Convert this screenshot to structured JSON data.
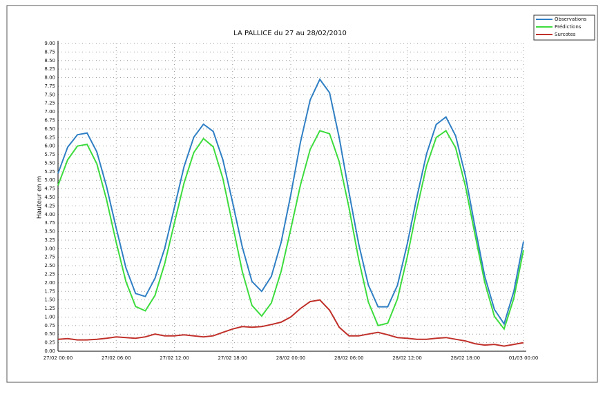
{
  "chart_data": {
    "type": "line",
    "title": "LA PALLICE du 27 au 28/02/2010",
    "y_label": "Hauteur en m",
    "x": [
      0,
      1,
      2,
      3,
      4,
      5,
      6,
      7,
      8,
      9,
      10,
      11,
      12,
      13,
      14,
      15,
      16,
      17,
      18,
      19,
      20,
      21,
      22,
      23,
      24,
      25,
      26,
      27,
      28,
      29,
      30,
      31,
      32,
      33,
      34,
      35,
      36,
      37,
      38,
      39,
      40,
      41,
      42,
      43,
      44,
      45,
      46,
      47,
      48
    ],
    "series": [
      {
        "name": "Observations",
        "color": "#2f7fc4",
        "values": [
          5.2,
          5.97,
          6.33,
          6.38,
          5.83,
          4.82,
          3.6,
          2.44,
          1.69,
          1.6,
          2.13,
          3.01,
          4.2,
          5.4,
          6.26,
          6.64,
          6.43,
          5.6,
          4.35,
          3.05,
          2.04,
          1.75,
          2.19,
          3.18,
          4.57,
          6.11,
          7.35,
          7.95,
          7.56,
          6.24,
          4.65,
          3.14,
          1.94,
          1.3,
          1.3,
          1.93,
          3.12,
          4.5,
          5.77,
          6.63,
          6.85,
          6.3,
          5.14,
          3.63,
          2.2,
          1.22,
          0.8,
          1.75,
          3.21
        ]
      },
      {
        "name": "Prédictions",
        "color": "#3ddc3d",
        "values": [
          4.85,
          5.6,
          6.0,
          6.05,
          5.48,
          4.44,
          3.18,
          2.04,
          1.31,
          1.18,
          1.63,
          2.56,
          3.75,
          4.92,
          5.81,
          6.22,
          5.98,
          5.05,
          3.7,
          2.33,
          1.34,
          1.03,
          1.41,
          2.33,
          3.57,
          4.86,
          5.9,
          6.45,
          6.36,
          5.54,
          4.2,
          2.69,
          1.44,
          0.75,
          0.82,
          1.53,
          2.74,
          4.15,
          5.42,
          6.25,
          6.45,
          5.95,
          4.84,
          3.41,
          2.02,
          1.02,
          0.65,
          1.55,
          2.96
        ]
      },
      {
        "name": "Surcotes",
        "color": "#c0302a",
        "values": [
          0.35,
          0.37,
          0.33,
          0.33,
          0.35,
          0.38,
          0.42,
          0.4,
          0.38,
          0.42,
          0.5,
          0.45,
          0.45,
          0.48,
          0.45,
          0.42,
          0.45,
          0.55,
          0.65,
          0.72,
          0.7,
          0.72,
          0.78,
          0.85,
          1.0,
          1.25,
          1.45,
          1.5,
          1.2,
          0.7,
          0.45,
          0.45,
          0.5,
          0.55,
          0.48,
          0.4,
          0.38,
          0.35,
          0.35,
          0.38,
          0.4,
          0.35,
          0.3,
          0.22,
          0.18,
          0.2,
          0.15,
          0.2,
          0.25
        ]
      }
    ],
    "xlim": [
      0,
      48
    ],
    "xticks": [
      {
        "value": 0,
        "label": "27/02 00:00"
      },
      {
        "value": 6,
        "label": "27/02 06:00"
      },
      {
        "value": 12,
        "label": "27/02 12:00"
      },
      {
        "value": 18,
        "label": "27/02 18:00"
      },
      {
        "value": 24,
        "label": "28/02 00:00"
      },
      {
        "value": 30,
        "label": "28/02 06:00"
      },
      {
        "value": 36,
        "label": "28/02 12:00"
      },
      {
        "value": 42,
        "label": "28/02 18:00"
      },
      {
        "value": 48,
        "label": "01/03 00:00"
      }
    ],
    "ylim": [
      0,
      9
    ],
    "yticks": [
      {
        "value": 0,
        "label": "0.00"
      },
      {
        "value": 0.25,
        "label": "0.25"
      },
      {
        "value": 0.5,
        "label": "0.50"
      },
      {
        "value": 0.75,
        "label": "0.75"
      },
      {
        "value": 1,
        "label": "1.00"
      },
      {
        "value": 1.25,
        "label": "1.25"
      },
      {
        "value": 1.5,
        "label": "1.50"
      },
      {
        "value": 1.75,
        "label": "1.75"
      },
      {
        "value": 2,
        "label": "2.00"
      },
      {
        "value": 2.25,
        "label": "2.25"
      },
      {
        "value": 2.5,
        "label": "2.50"
      },
      {
        "value": 2.75,
        "label": "2.75"
      },
      {
        "value": 3,
        "label": "3.00"
      },
      {
        "value": 3.25,
        "label": "3.25"
      },
      {
        "value": 3.5,
        "label": "3.50"
      },
      {
        "value": 3.75,
        "label": "3.75"
      },
      {
        "value": 4,
        "label": "4.00"
      },
      {
        "value": 4.25,
        "label": "4.25"
      },
      {
        "value": 4.5,
        "label": "4.50"
      },
      {
        "value": 4.75,
        "label": "4.75"
      },
      {
        "value": 5,
        "label": "5.00"
      },
      {
        "value": 5.25,
        "label": "5.25"
      },
      {
        "value": 5.5,
        "label": "5.50"
      },
      {
        "value": 5.75,
        "label": "5.75"
      },
      {
        "value": 6,
        "label": "6.00"
      },
      {
        "value": 6.25,
        "label": "6.25"
      },
      {
        "value": 6.5,
        "label": "6.50"
      },
      {
        "value": 6.75,
        "label": "6.75"
      },
      {
        "value": 7,
        "label": "7.00"
      },
      {
        "value": 7.25,
        "label": "7.25"
      },
      {
        "value": 7.5,
        "label": "7.50"
      },
      {
        "value": 7.75,
        "label": "7.75"
      },
      {
        "value": 8,
        "label": "8.00"
      },
      {
        "value": 8.25,
        "label": "8.25"
      },
      {
        "value": 8.5,
        "label": "8.50"
      },
      {
        "value": 8.75,
        "label": "8.75"
      },
      {
        "value": 9,
        "label": "9.00"
      }
    ],
    "grid": true,
    "legend": "top-right"
  }
}
